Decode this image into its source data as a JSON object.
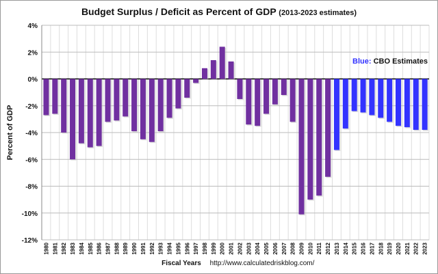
{
  "chart_data": {
    "type": "bar",
    "title": "Budget Surplus / Deficit as Percent of GDP",
    "subtitle": "(2013-2023 estimates)",
    "xlabel": "Fiscal Years",
    "ylabel": "Percent of GDP",
    "source": "http://www.calculatedriskblog.com/",
    "annotation": {
      "prefix": "Blue:",
      "text": "CBO Estimates"
    },
    "ylim": [
      -12,
      4
    ],
    "yticks": [
      4,
      2,
      0,
      -2,
      -4,
      -6,
      -8,
      -10,
      -12
    ],
    "ytick_labels": [
      "4%",
      "2%",
      "0%",
      "-2%",
      "-4%",
      "-6%",
      "-8%",
      "-10%",
      "-12%"
    ],
    "grid": true,
    "colors": {
      "actual": "#7030a0",
      "estimate": "#3333ff"
    },
    "categories": [
      "1980",
      "1981",
      "1982",
      "1983",
      "1984",
      "1985",
      "1986",
      "1987",
      "1988",
      "1989",
      "1990",
      "1991",
      "1992",
      "1993",
      "1994",
      "1995",
      "1996",
      "1997",
      "1998",
      "1999",
      "2000",
      "2001",
      "2002",
      "2003",
      "2004",
      "2005",
      "2006",
      "2007",
      "2008",
      "2009",
      "2010",
      "2011",
      "2012",
      "2013",
      "2014",
      "2015",
      "2016",
      "2017",
      "2018",
      "2019",
      "2020",
      "2021",
      "2022",
      "2023"
    ],
    "values": [
      -2.7,
      -2.6,
      -4.0,
      -6.0,
      -4.8,
      -5.1,
      -5.0,
      -3.2,
      -3.1,
      -2.8,
      -3.9,
      -4.5,
      -4.7,
      -3.9,
      -2.9,
      -2.2,
      -1.4,
      -0.3,
      0.8,
      1.4,
      2.4,
      1.3,
      -1.5,
      -3.4,
      -3.5,
      -2.6,
      -1.9,
      -1.2,
      -3.2,
      -10.1,
      -9.0,
      -8.7,
      -7.3,
      -5.3,
      -3.7,
      -2.4,
      -2.5,
      -2.7,
      -2.9,
      -3.2,
      -3.5,
      -3.6,
      -3.8,
      -3.8
    ],
    "estimate_from": "2013"
  }
}
